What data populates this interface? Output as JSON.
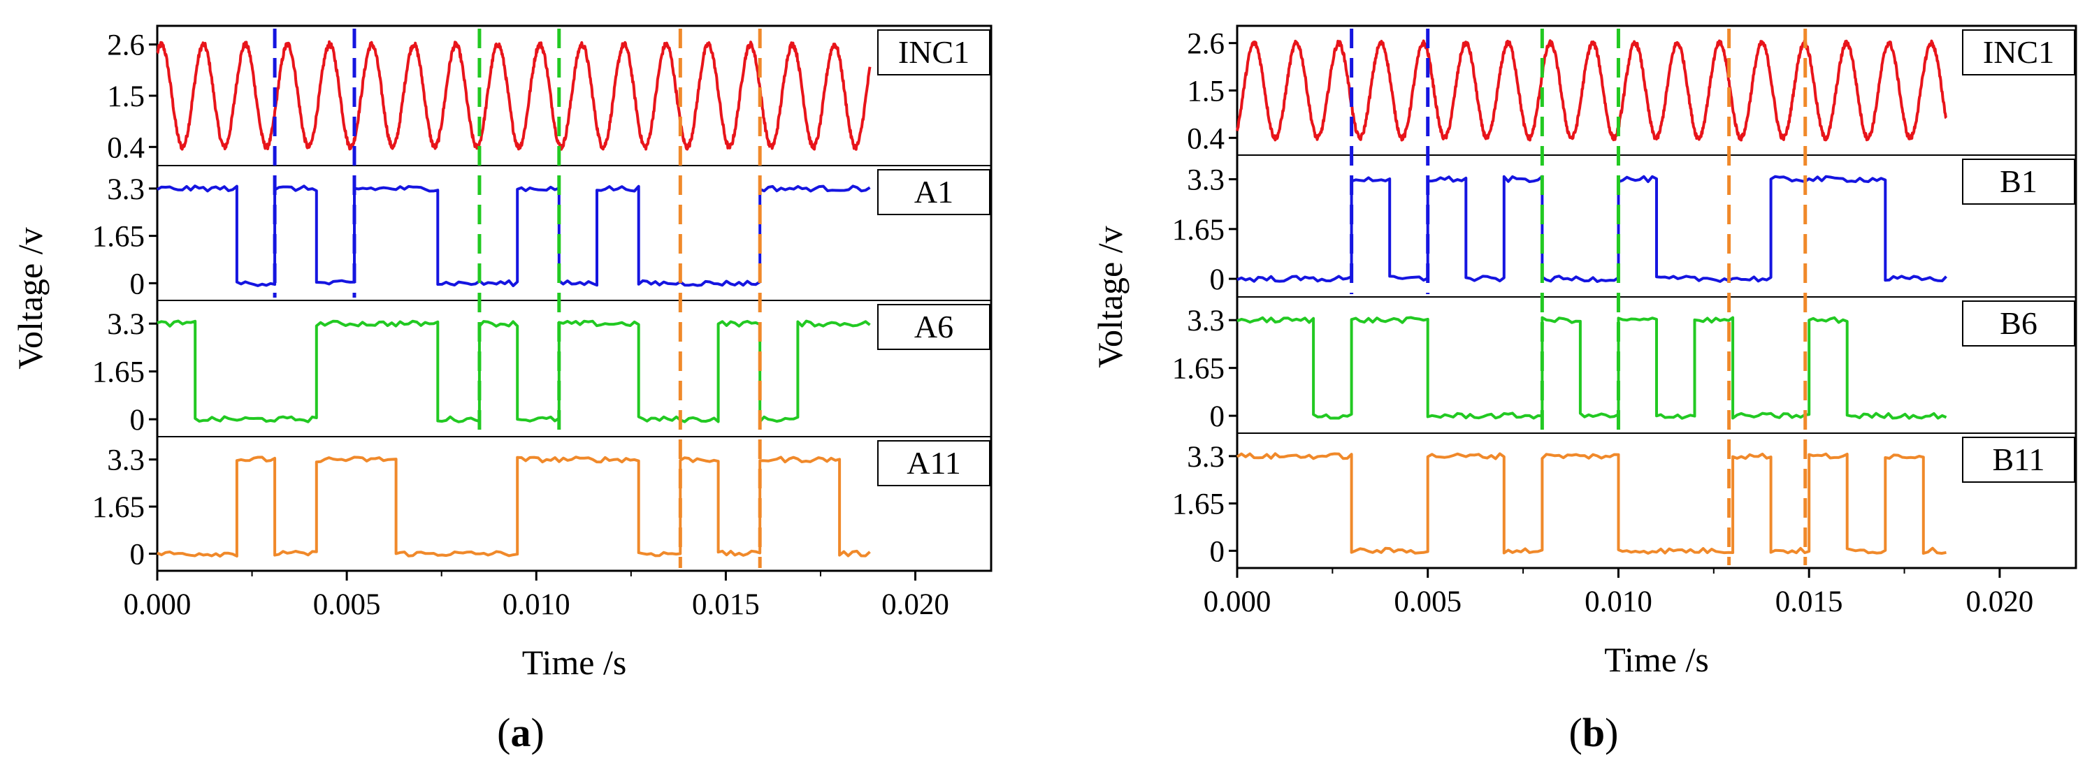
{
  "chart_data": [
    {
      "panel_id": "a",
      "panel_label": "a",
      "type": "line",
      "xlabel": "Time /s",
      "ylabel": "Voltage /v",
      "xlim": [
        0,
        0.022
      ],
      "xticks": [
        0,
        0.005,
        0.01,
        0.015,
        0.02
      ],
      "xtick_labels": [
        "0.000",
        "0.005",
        "0.010",
        "0.015",
        "0.020"
      ],
      "signal_end": 0.0188,
      "markers": [
        {
          "t": 0.0031,
          "color": "#1515e0",
          "from_row": 0,
          "to_row": 1
        },
        {
          "t": 0.0052,
          "color": "#1515e0",
          "from_row": 0,
          "to_row": 1
        },
        {
          "t": 0.0085,
          "color": "#22c922",
          "from_row": 0,
          "to_row": 2
        },
        {
          "t": 0.0106,
          "color": "#22c922",
          "from_row": 0,
          "to_row": 2
        },
        {
          "t": 0.0138,
          "color": "#f0892a",
          "from_row": 0,
          "to_row": 3
        },
        {
          "t": 0.0159,
          "color": "#f0892a",
          "from_row": 0,
          "to_row": 3
        }
      ],
      "rows": [
        {
          "name": "INC1",
          "kind": "sine",
          "color": "#e8141a",
          "ylim": [
            0.0,
            3.0
          ],
          "yticks": [
            0.4,
            1.5,
            2.6
          ],
          "ytick_labels": [
            "0.4",
            "1.5",
            "2.6"
          ],
          "min": 0.4,
          "max": 2.6,
          "period": 0.00111,
          "phase0": 0.0,
          "start_value": 2.4
        },
        {
          "name": "A1",
          "kind": "square",
          "color": "#1515e0",
          "ylim": [
            -0.6,
            4.1
          ],
          "yticks": [
            0,
            1.65,
            3.3
          ],
          "ytick_labels": [
            "0",
            "1.65",
            "3.3"
          ],
          "high": 3.3,
          "low": 0,
          "initial": 3.3,
          "transitions": [
            0.0021,
            0.0031,
            0.0042,
            0.0052,
            0.0074,
            0.0095,
            0.0106,
            0.0116,
            0.0127,
            0.0159
          ]
        },
        {
          "name": "A6",
          "kind": "square",
          "color": "#22c922",
          "ylim": [
            -0.6,
            4.1
          ],
          "yticks": [
            0,
            1.65,
            3.3
          ],
          "ytick_labels": [
            "0",
            "1.65",
            "3.3"
          ],
          "high": 3.3,
          "low": 0,
          "initial": 3.3,
          "transitions": [
            0.001,
            0.0042,
            0.0074,
            0.0085,
            0.0095,
            0.0106,
            0.0127,
            0.0148,
            0.0159,
            0.0169
          ]
        },
        {
          "name": "A11",
          "kind": "square",
          "color": "#f0892a",
          "ylim": [
            -0.6,
            4.1
          ],
          "yticks": [
            0,
            1.65,
            3.3
          ],
          "ytick_labels": [
            "0",
            "1.65",
            "3.3"
          ],
          "high": 3.3,
          "low": 0,
          "initial": 0,
          "transitions": [
            0.0021,
            0.0031,
            0.0042,
            0.0063,
            0.0095,
            0.0127,
            0.0138,
            0.0148,
            0.0159,
            0.018
          ]
        }
      ]
    },
    {
      "panel_id": "b",
      "panel_label": "b",
      "type": "line",
      "xlabel": "Time /s",
      "ylabel": "Voltage /v",
      "xlim": [
        0,
        0.022
      ],
      "xticks": [
        0,
        0.005,
        0.01,
        0.015,
        0.02
      ],
      "xtick_labels": [
        "0.000",
        "0.005",
        "0.010",
        "0.015",
        "0.020"
      ],
      "signal_end": 0.0186,
      "markers": [
        {
          "t": 0.003,
          "color": "#1515e0",
          "from_row": 0,
          "to_row": 1
        },
        {
          "t": 0.005,
          "color": "#1515e0",
          "from_row": 0,
          "to_row": 1
        },
        {
          "t": 0.008,
          "color": "#22c922",
          "from_row": 0,
          "to_row": 2
        },
        {
          "t": 0.01,
          "color": "#22c922",
          "from_row": 0,
          "to_row": 2
        },
        {
          "t": 0.0129,
          "color": "#f0892a",
          "from_row": 0,
          "to_row": 3
        },
        {
          "t": 0.0149,
          "color": "#f0892a",
          "from_row": 0,
          "to_row": 3
        }
      ],
      "rows": [
        {
          "name": "INC1",
          "kind": "sine",
          "color": "#e8141a",
          "ylim": [
            0.0,
            3.0
          ],
          "yticks": [
            0.4,
            1.5,
            2.6
          ],
          "ytick_labels": [
            "0.4",
            "1.5",
            "2.6"
          ],
          "min": 0.4,
          "max": 2.6,
          "period": 0.00111,
          "phase0": 0.0,
          "start_value": 0.6
        },
        {
          "name": "B1",
          "kind": "square",
          "color": "#1515e0",
          "ylim": [
            -0.6,
            4.1
          ],
          "yticks": [
            0,
            1.65,
            3.3
          ],
          "ytick_labels": [
            "0",
            "1.65",
            "3.3"
          ],
          "high": 3.3,
          "low": 0,
          "initial": 0,
          "transitions": [
            0.003,
            0.004,
            0.005,
            0.006,
            0.007,
            0.008,
            0.01,
            0.011,
            0.014,
            0.017
          ]
        },
        {
          "name": "B6",
          "kind": "square",
          "color": "#22c922",
          "ylim": [
            -0.6,
            4.1
          ],
          "yticks": [
            0,
            1.65,
            3.3
          ],
          "ytick_labels": [
            "0",
            "1.65",
            "3.3"
          ],
          "high": 3.3,
          "low": 0,
          "initial": 3.3,
          "transitions": [
            0.002,
            0.003,
            0.005,
            0.008,
            0.009,
            0.01,
            0.011,
            0.012,
            0.013,
            0.015,
            0.016
          ]
        },
        {
          "name": "B11",
          "kind": "square",
          "color": "#f0892a",
          "ylim": [
            -0.6,
            4.1
          ],
          "yticks": [
            0,
            1.65,
            3.3
          ],
          "ytick_labels": [
            "0",
            "1.65",
            "3.3"
          ],
          "high": 3.3,
          "low": 0,
          "initial": 3.3,
          "transitions": [
            0.003,
            0.005,
            0.007,
            0.008,
            0.01,
            0.013,
            0.014,
            0.015,
            0.016,
            0.017,
            0.018
          ]
        }
      ]
    }
  ]
}
